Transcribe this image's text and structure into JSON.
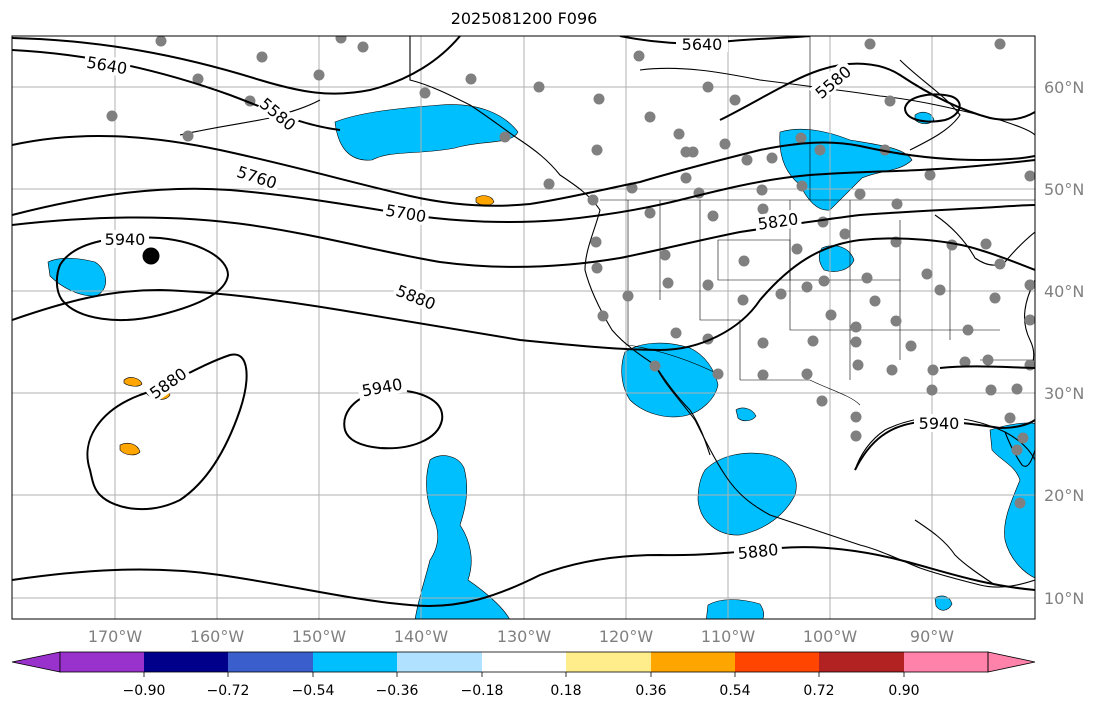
{
  "title": "2025081200 F096",
  "map": {
    "lat_labels": [
      "60°N",
      "50°N",
      "40°N",
      "30°N",
      "20°N",
      "10°N"
    ],
    "lon_labels": [
      "170°W",
      "160°W",
      "150°W",
      "140°W",
      "130°W",
      "120°W",
      "110°W",
      "100°W",
      "90°W"
    ],
    "contour_labels": [
      "5640",
      "5640",
      "5580",
      "5580",
      "5760",
      "5700",
      "5820",
      "5940",
      "5880",
      "5940",
      "5880",
      "5940",
      "5880"
    ],
    "colors": {
      "contour": "#000000",
      "negative_fill": "#00bfff",
      "positive_fill": "#ffa500",
      "station_marker": "#808080",
      "gridline": "#b0b0b0"
    }
  },
  "colorbar": {
    "tick_labels": [
      "−0.90",
      "−0.72",
      "−0.54",
      "−0.36",
      "−0.18",
      "0.18",
      "0.36",
      "0.54",
      "0.72",
      "0.90"
    ],
    "colors": [
      "#9932cc",
      "#00008b",
      "#3a5fcd",
      "#00bfff",
      "#b0e2ff",
      "#ffffff",
      "#ffec8b",
      "#ffa500",
      "#ff4500",
      "#b22222",
      "#ff82ab"
    ]
  }
}
